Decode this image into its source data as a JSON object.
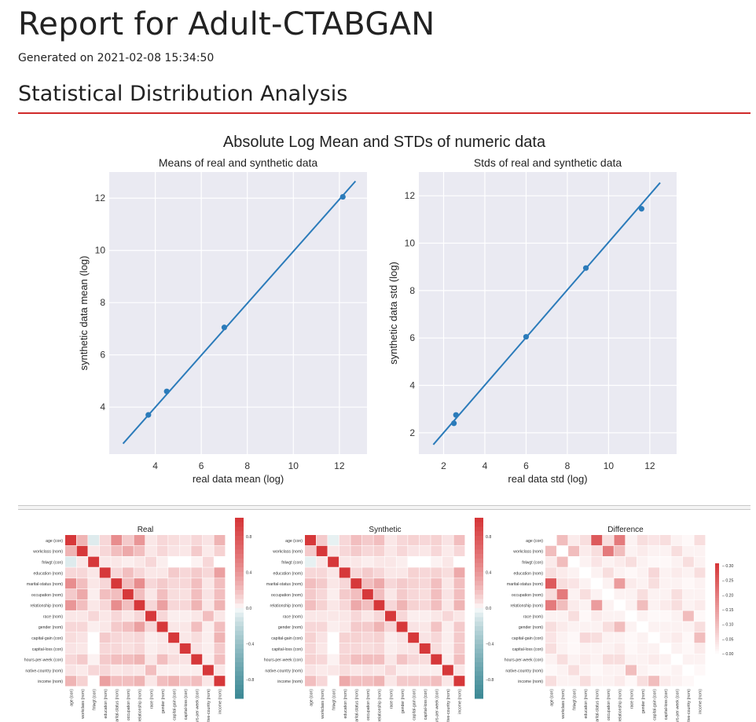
{
  "report": {
    "title": "Report for Adult-CTABGAN",
    "generated": "Generated on 2021-02-08 15:34:50",
    "section_title": "Statistical Distribution Analysis"
  },
  "figure_title": "Absolute Log Mean and STDs of numeric data",
  "colors": {
    "accent_rule": "#d02a2a",
    "plot_bg": "#eaeaf2",
    "series": "#2b7bba",
    "heat_pos": "#d6383a",
    "heat_neg": "#3e8a96"
  },
  "chart_data": [
    {
      "type": "scatter",
      "title": "Means of real and synthetic data",
      "xlabel": "real data mean (log)",
      "ylabel": "synthetic data mean (log)",
      "xlim": [
        2.0,
        13.2
      ],
      "ylim": [
        2.2,
        13.0
      ],
      "xticks": [
        4,
        6,
        8,
        10,
        12
      ],
      "yticks": [
        4,
        6,
        8,
        10,
        12
      ],
      "grid": true,
      "points": [
        {
          "x": 3.7,
          "y": 3.7
        },
        {
          "x": 4.5,
          "y": 4.6
        },
        {
          "x": 7.0,
          "y": 7.05
        },
        {
          "x": 12.15,
          "y": 12.05
        }
      ],
      "line": [
        [
          2.6,
          2.6
        ],
        [
          12.7,
          12.65
        ]
      ]
    },
    {
      "type": "scatter",
      "title": "Stds of real and synthetic data",
      "xlabel": "real data std (log)",
      "ylabel": "synthetic data std (log)",
      "xlim": [
        0.8,
        13.3
      ],
      "ylim": [
        1.1,
        13.0
      ],
      "xticks": [
        2,
        4,
        6,
        8,
        10,
        12
      ],
      "yticks": [
        2,
        4,
        6,
        8,
        10,
        12
      ],
      "grid": true,
      "points": [
        {
          "x": 2.5,
          "y": 2.4
        },
        {
          "x": 2.6,
          "y": 2.75
        },
        {
          "x": 6.0,
          "y": 6.05
        },
        {
          "x": 8.9,
          "y": 8.95
        },
        {
          "x": 11.6,
          "y": 11.45
        }
      ],
      "line": [
        [
          1.5,
          1.5
        ],
        [
          12.5,
          12.55
        ]
      ]
    },
    {
      "type": "heatmap",
      "title": "Real",
      "row_labels": [
        "age (con)",
        "workclass (nom)",
        "fnlwgt (con)",
        "education (nom)",
        "marital-status (nom)",
        "occupation (nom)",
        "relationship (nom)",
        "race (nom)",
        "gender (nom)",
        "capital-gain (con)",
        "capital-loss (con)",
        "hours-per-week (con)",
        "native-country (nom)",
        "income (nom)"
      ],
      "col_labels": [
        "age (con)",
        "workclass (nom)",
        "fnlwgt (con)",
        "education (nom)",
        "marital-status (nom)",
        "occupation (nom)",
        "relationship (nom)",
        "race (nom)",
        "gender (nom)",
        "capital-gain (con)",
        "capital-loss (con)",
        "hours-per-week (con)",
        "native-country (nom)",
        "income (nom)"
      ],
      "colorbar_ticks": [
        "0.8",
        "0.4",
        "0.0",
        "−0.4",
        "−0.8"
      ],
      "values": [
        [
          1.0,
          0.25,
          -0.08,
          0.1,
          0.45,
          0.15,
          0.4,
          0.05,
          0.1,
          0.08,
          0.06,
          0.1,
          0.06,
          0.25
        ],
        [
          0.25,
          1.0,
          0.05,
          0.1,
          0.2,
          0.3,
          0.2,
          0.05,
          0.1,
          0.06,
          0.05,
          0.15,
          0.04,
          0.12
        ],
        [
          -0.08,
          0.05,
          1.0,
          0.05,
          0.05,
          0.03,
          0.05,
          0.1,
          0.03,
          0.0,
          0.0,
          0.02,
          0.1,
          0.0
        ],
        [
          0.1,
          0.1,
          0.05,
          1.0,
          0.1,
          0.2,
          0.1,
          0.05,
          0.05,
          0.15,
          0.1,
          0.15,
          0.1,
          0.35
        ],
        [
          0.45,
          0.2,
          0.05,
          0.1,
          1.0,
          0.2,
          0.45,
          0.1,
          0.15,
          0.1,
          0.1,
          0.2,
          0.05,
          0.2
        ],
        [
          0.15,
          0.3,
          0.03,
          0.2,
          0.2,
          1.0,
          0.2,
          0.05,
          0.2,
          0.08,
          0.07,
          0.2,
          0.06,
          0.2
        ],
        [
          0.4,
          0.2,
          0.05,
          0.1,
          0.45,
          0.2,
          1.0,
          0.1,
          0.35,
          0.1,
          0.1,
          0.25,
          0.05,
          0.25
        ],
        [
          0.05,
          0.05,
          0.1,
          0.05,
          0.1,
          0.05,
          0.1,
          1.0,
          0.1,
          0.03,
          0.03,
          0.05,
          0.2,
          0.05
        ],
        [
          0.1,
          0.1,
          0.03,
          0.05,
          0.15,
          0.2,
          0.35,
          0.1,
          1.0,
          0.05,
          0.05,
          0.2,
          0.03,
          0.2
        ],
        [
          0.08,
          0.06,
          0.0,
          0.15,
          0.1,
          0.08,
          0.1,
          0.03,
          0.05,
          1.0,
          0.05,
          0.08,
          0.03,
          0.25
        ],
        [
          0.06,
          0.05,
          0.0,
          0.1,
          0.1,
          0.07,
          0.1,
          0.03,
          0.05,
          0.05,
          1.0,
          0.06,
          0.03,
          0.15
        ],
        [
          0.1,
          0.15,
          0.02,
          0.15,
          0.2,
          0.2,
          0.25,
          0.05,
          0.2,
          0.08,
          0.06,
          1.0,
          0.03,
          0.2
        ],
        [
          0.06,
          0.04,
          0.1,
          0.1,
          0.05,
          0.06,
          0.05,
          0.2,
          0.03,
          0.03,
          0.03,
          0.03,
          1.0,
          0.05
        ],
        [
          0.25,
          0.12,
          0.0,
          0.35,
          0.2,
          0.2,
          0.25,
          0.05,
          0.2,
          0.25,
          0.15,
          0.2,
          0.05,
          1.0
        ]
      ]
    },
    {
      "type": "heatmap",
      "title": "Synthetic",
      "row_labels": [
        "age (con)",
        "workclass (nom)",
        "fnlwgt (con)",
        "education (nom)",
        "marital-status (nom)",
        "occupation (nom)",
        "relationship (nom)",
        "race (nom)",
        "gender (nom)",
        "capital-gain (con)",
        "capital-loss (con)",
        "hours-per-week (con)",
        "native-country (nom)",
        "income (nom)"
      ],
      "col_labels": [
        "age (con)",
        "workclass (nom)",
        "fnlwgt (con)",
        "education (nom)",
        "marital-status (nom)",
        "occupation (nom)",
        "relationship (nom)",
        "race (nom)",
        "gender (nom)",
        "capital-gain (con)",
        "capital-loss (con)",
        "hours-per-week (con)",
        "native-country (nom)",
        "income (nom)"
      ],
      "colorbar_ticks": [
        "0.8",
        "0.4",
        "0.0",
        "−0.4",
        "−0.8"
      ],
      "values": [
        [
          1.0,
          0.15,
          -0.05,
          0.1,
          0.2,
          0.15,
          0.2,
          0.05,
          0.1,
          0.12,
          0.1,
          0.12,
          0.06,
          0.2
        ],
        [
          0.15,
          1.0,
          0.05,
          0.1,
          0.15,
          0.1,
          0.12,
          0.05,
          0.1,
          0.06,
          0.05,
          0.1,
          0.04,
          0.1
        ],
        [
          -0.05,
          0.05,
          1.0,
          0.05,
          0.05,
          0.03,
          0.05,
          0.05,
          0.03,
          0.0,
          0.0,
          0.02,
          0.05,
          0.0
        ],
        [
          0.1,
          0.1,
          0.05,
          1.0,
          0.1,
          0.15,
          0.1,
          0.05,
          0.05,
          0.12,
          0.1,
          0.12,
          0.08,
          0.3
        ],
        [
          0.2,
          0.15,
          0.05,
          0.1,
          1.0,
          0.2,
          0.3,
          0.1,
          0.15,
          0.12,
          0.1,
          0.2,
          0.05,
          0.2
        ],
        [
          0.15,
          0.1,
          0.03,
          0.15,
          0.2,
          1.0,
          0.2,
          0.05,
          0.15,
          0.1,
          0.08,
          0.2,
          0.06,
          0.2
        ],
        [
          0.2,
          0.12,
          0.05,
          0.1,
          0.3,
          0.2,
          1.0,
          0.1,
          0.25,
          0.12,
          0.1,
          0.2,
          0.05,
          0.25
        ],
        [
          0.05,
          0.05,
          0.05,
          0.05,
          0.1,
          0.05,
          0.1,
          1.0,
          0.1,
          0.03,
          0.03,
          0.05,
          0.1,
          0.05
        ],
        [
          0.1,
          0.1,
          0.03,
          0.05,
          0.15,
          0.15,
          0.25,
          0.1,
          1.0,
          0.06,
          0.05,
          0.18,
          0.03,
          0.15
        ],
        [
          0.12,
          0.06,
          0.0,
          0.12,
          0.12,
          0.1,
          0.12,
          0.03,
          0.06,
          1.0,
          0.06,
          0.1,
          0.03,
          0.15
        ],
        [
          0.1,
          0.05,
          0.0,
          0.1,
          0.1,
          0.08,
          0.1,
          0.03,
          0.05,
          0.06,
          1.0,
          0.08,
          0.03,
          0.15
        ],
        [
          0.12,
          0.1,
          0.02,
          0.12,
          0.2,
          0.2,
          0.2,
          0.05,
          0.18,
          0.1,
          0.08,
          1.0,
          0.03,
          0.2
        ],
        [
          0.06,
          0.04,
          0.05,
          0.08,
          0.05,
          0.06,
          0.05,
          0.1,
          0.03,
          0.03,
          0.03,
          0.03,
          1.0,
          0.05
        ],
        [
          0.2,
          0.1,
          0.0,
          0.3,
          0.2,
          0.2,
          0.25,
          0.05,
          0.15,
          0.15,
          0.15,
          0.2,
          0.05,
          1.0
        ]
      ]
    },
    {
      "type": "heatmap",
      "title": "Difference",
      "row_labels": [
        "age (con)",
        "workclass (nom)",
        "fnlwgt (con)",
        "education (nom)",
        "marital-status (nom)",
        "occupation (nom)",
        "relationship (nom)",
        "race (nom)",
        "gender (nom)",
        "capital-gain (con)",
        "capital-loss (con)",
        "hours-per-week (con)",
        "native-country (nom)",
        "income (nom)"
      ],
      "col_labels": [
        "age (con)",
        "workclass (nom)",
        "fnlwgt (con)",
        "education (nom)",
        "marital-status (nom)",
        "occupation (nom)",
        "relationship (nom)",
        "race (nom)",
        "gender (nom)",
        "capital-gain (con)",
        "capital-loss (con)",
        "hours-per-week (con)",
        "native-country (nom)",
        "income (nom)"
      ],
      "colorbar_ticks": [
        "0.30",
        "0.25",
        "0.20",
        "0.15",
        "0.10",
        "0.05",
        "0.00"
      ],
      "values": [
        [
          0.0,
          0.1,
          0.03,
          0.05,
          0.25,
          0.05,
          0.2,
          0.02,
          0.05,
          0.04,
          0.05,
          0.02,
          0.01,
          0.05
        ],
        [
          0.1,
          0.0,
          0.1,
          0.03,
          0.05,
          0.2,
          0.1,
          0.02,
          0.03,
          0.02,
          0.02,
          0.05,
          0.02,
          0.02
        ],
        [
          0.03,
          0.1,
          0.0,
          0.02,
          0.04,
          0.02,
          0.03,
          0.05,
          0.02,
          0.01,
          0.01,
          0.02,
          0.05,
          0.02
        ],
        [
          0.05,
          0.03,
          0.02,
          0.0,
          0.02,
          0.05,
          0.02,
          0.01,
          0.02,
          0.06,
          0.02,
          0.03,
          0.02,
          0.05
        ],
        [
          0.25,
          0.05,
          0.04,
          0.02,
          0.0,
          0.02,
          0.15,
          0.03,
          0.02,
          0.05,
          0.02,
          0.02,
          0.01,
          0.02
        ],
        [
          0.05,
          0.2,
          0.02,
          0.05,
          0.02,
          0.0,
          0.02,
          0.02,
          0.05,
          0.02,
          0.02,
          0.05,
          0.02,
          0.02
        ],
        [
          0.2,
          0.1,
          0.03,
          0.02,
          0.15,
          0.02,
          0.0,
          0.02,
          0.1,
          0.02,
          0.03,
          0.05,
          0.02,
          0.03
        ],
        [
          0.02,
          0.02,
          0.05,
          0.01,
          0.03,
          0.02,
          0.02,
          0.0,
          0.02,
          0.01,
          0.01,
          0.02,
          0.1,
          0.01
        ],
        [
          0.05,
          0.03,
          0.02,
          0.02,
          0.02,
          0.05,
          0.1,
          0.02,
          0.0,
          0.02,
          0.02,
          0.02,
          0.02,
          0.05
        ],
        [
          0.04,
          0.02,
          0.01,
          0.06,
          0.05,
          0.02,
          0.02,
          0.01,
          0.02,
          0.0,
          0.02,
          0.03,
          0.01,
          0.1
        ],
        [
          0.05,
          0.02,
          0.01,
          0.02,
          0.02,
          0.02,
          0.03,
          0.01,
          0.02,
          0.02,
          0.0,
          0.02,
          0.01,
          0.03
        ],
        [
          0.02,
          0.05,
          0.02,
          0.03,
          0.02,
          0.05,
          0.05,
          0.02,
          0.02,
          0.03,
          0.02,
          0.0,
          0.02,
          0.02
        ],
        [
          0.01,
          0.02,
          0.05,
          0.02,
          0.01,
          0.02,
          0.02,
          0.1,
          0.02,
          0.01,
          0.01,
          0.02,
          0.0,
          0.01
        ],
        [
          0.05,
          0.02,
          0.02,
          0.05,
          0.02,
          0.02,
          0.03,
          0.01,
          0.05,
          0.1,
          0.03,
          0.02,
          0.01,
          0.0
        ]
      ]
    }
  ]
}
